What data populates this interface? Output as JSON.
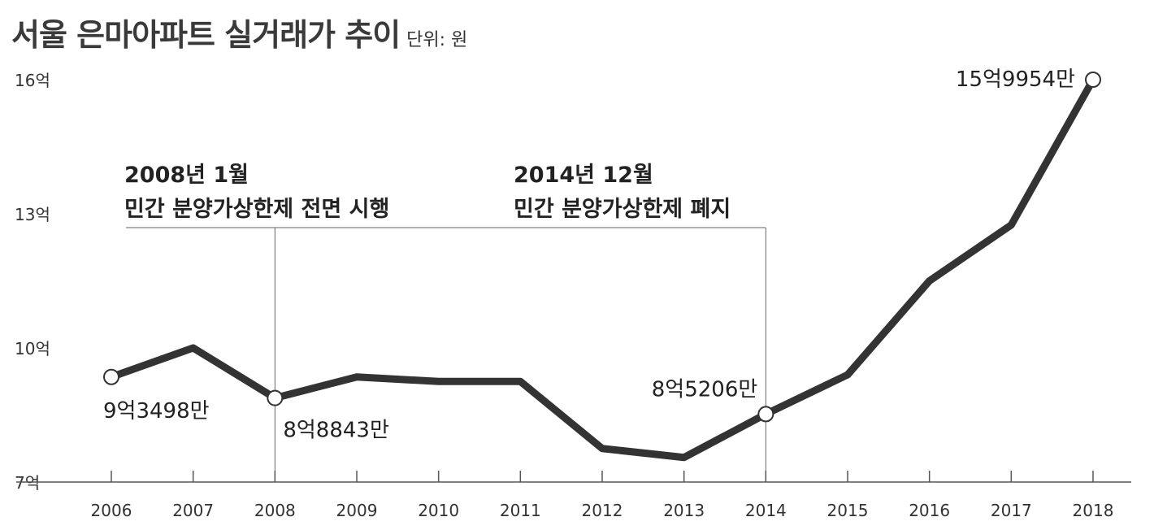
{
  "title": "서울 은마아파트 실거래가 추이",
  "unit": "단위: 원",
  "chart_data": {
    "type": "line",
    "title": "서울 은마아파트 실거래가 추이",
    "unit": "단위: 원",
    "x": [
      2006,
      2007,
      2008,
      2009,
      2010,
      2011,
      2012,
      2013,
      2014,
      2015,
      2016,
      2017,
      2018
    ],
    "x_tick_labels": [
      "2006",
      "2007",
      "2008",
      "2009",
      "2010",
      "2011",
      "2012",
      "2013",
      "2014",
      "2015",
      "2016",
      "2017",
      "2018"
    ],
    "series": [
      {
        "values": [
          9.35,
          10.0,
          8.88,
          9.35,
          9.25,
          9.25,
          7.75,
          7.55,
          8.52,
          9.4,
          11.5,
          12.75,
          16.0
        ]
      }
    ],
    "ylim": [
      7,
      16
    ],
    "y_ticks": [
      7,
      10,
      13,
      16
    ],
    "y_tick_labels": [
      "7억",
      "10억",
      "13억",
      "16억"
    ],
    "line_color": "#333333",
    "data_labels": [
      {
        "index": 0,
        "text": "9억3498만"
      },
      {
        "index": 2,
        "text": "8억8843만"
      },
      {
        "index": 8,
        "text": "8억5206만"
      },
      {
        "index": 12,
        "text": "15억9954만"
      }
    ],
    "annotations": [
      {
        "x": 2008,
        "lines": [
          "2008년 1월",
          "민간 분양가상한제 전면 시행"
        ]
      },
      {
        "x": 2014,
        "lines": [
          "2014년 12월",
          "민간 분양가상한제 폐지"
        ]
      }
    ]
  }
}
